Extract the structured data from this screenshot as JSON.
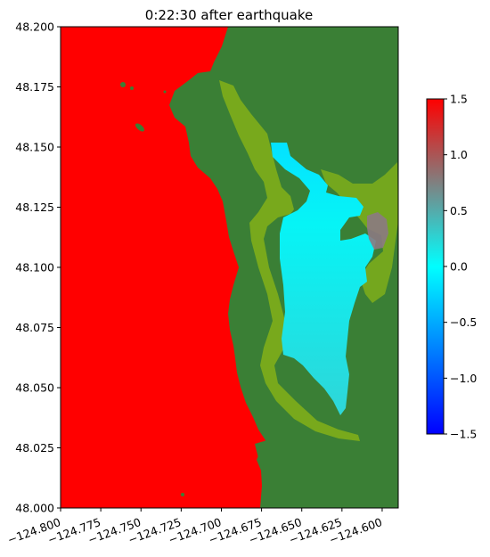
{
  "chart_data": {
    "type": "heatmap",
    "title": "0:22:30 after earthquake",
    "xlabel": "",
    "ylabel": "",
    "x_ticks": [
      "−124.800",
      "−124.775",
      "−124.750",
      "−124.725",
      "−124.700",
      "−124.675",
      "−124.650",
      "−124.625",
      "−124.600"
    ],
    "x_tick_values": [
      -124.8,
      -124.775,
      -124.75,
      -124.725,
      -124.7,
      -124.675,
      -124.65,
      -124.625,
      -124.6
    ],
    "y_ticks": [
      "48.000",
      "48.025",
      "48.050",
      "48.075",
      "48.100",
      "48.125",
      "48.150",
      "48.175",
      "48.200"
    ],
    "y_tick_values": [
      48.0,
      48.025,
      48.05,
      48.075,
      48.1,
      48.125,
      48.15,
      48.175,
      48.2
    ],
    "xlim": [
      -124.8,
      -124.59
    ],
    "ylim": [
      48.0,
      48.2
    ],
    "colorbar": {
      "range": [
        -1.5,
        1.5
      ],
      "ticks": [
        "1.5",
        "1.0",
        "0.5",
        "0.0",
        "−0.5",
        "−1.0",
        "−1.5"
      ],
      "tick_values": [
        1.5,
        1.0,
        0.5,
        0.0,
        -0.5,
        -1.0,
        -1.5
      ],
      "colors": [
        "#0000ff",
        "#00ffff",
        "#808080",
        "#ff0000"
      ]
    },
    "regions": [
      {
        "name": "offshore-saturated",
        "value": 1.5,
        "color": "#ff0000"
      },
      {
        "name": "land",
        "color": "#3a7f35"
      },
      {
        "name": "bay-water",
        "value": 0.2,
        "color": "#2ad9dc"
      },
      {
        "name": "inlet-water",
        "value": 0.0,
        "color": "#05f0f8"
      },
      {
        "name": "shallow-shore",
        "color": "#7fae1a"
      },
      {
        "name": "east-inlet-high",
        "value": 0.9,
        "color": "#8a7a80"
      }
    ]
  }
}
